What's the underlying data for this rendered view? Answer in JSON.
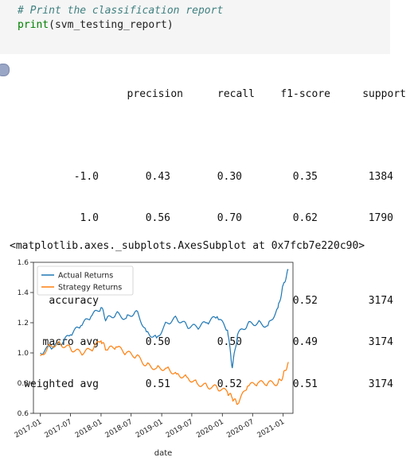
{
  "cell": {
    "comment": "# Print the classification report",
    "code_fn": "print",
    "code_arg": "(svm_testing_report)"
  },
  "report": {
    "headers": [
      "precision",
      "recall",
      "f1-score",
      "support"
    ],
    "rows": [
      {
        "label": "-1.0",
        "precision": "0.43",
        "recall": "0.30",
        "f1": "0.35",
        "support": "1384"
      },
      {
        "label": "1.0",
        "precision": "0.56",
        "recall": "0.70",
        "f1": "0.62",
        "support": "1790"
      },
      {
        "label": "accuracy",
        "precision": "",
        "recall": "",
        "f1": "0.52",
        "support": "3174"
      },
      {
        "label": "macro avg",
        "precision": "0.50",
        "recall": "0.50",
        "f1": "0.49",
        "support": "3174"
      },
      {
        "label": "weighted avg",
        "precision": "0.51",
        "recall": "0.52",
        "f1": "0.51",
        "support": "3174"
      }
    ]
  },
  "output_repr": "<matplotlib.axes._subplots.AxesSubplot at 0x7fcb7e220c90>",
  "chart_data": {
    "type": "line",
    "xlabel": "date",
    "ylabel": "",
    "ylim": [
      0.6,
      1.6
    ],
    "yticks": [
      "0.6",
      "0.8",
      "1.0",
      "1.2",
      "1.4",
      "1.6"
    ],
    "xticks": [
      "2017-01",
      "2017-07",
      "2018-01",
      "2018-07",
      "2019-01",
      "2019-07",
      "2020-01",
      "2020-07",
      "2021-01"
    ],
    "legend_position": "top-left",
    "series": [
      {
        "name": "Actual Returns",
        "color": "#1f77b4",
        "x": [
          "2017-01",
          "2017-03",
          "2017-05",
          "2017-07",
          "2017-09",
          "2017-11",
          "2018-01",
          "2018-02",
          "2018-04",
          "2018-06",
          "2018-08",
          "2018-10",
          "2018-12",
          "2019-02",
          "2019-04",
          "2019-06",
          "2019-08",
          "2019-10",
          "2019-12",
          "2020-02",
          "2020-03",
          "2020-04",
          "2020-06",
          "2020-08",
          "2020-10",
          "2020-12",
          "2021-01",
          "2021-02"
        ],
        "y": [
          1.0,
          1.04,
          1.06,
          1.12,
          1.18,
          1.24,
          1.3,
          1.22,
          1.26,
          1.23,
          1.28,
          1.14,
          1.1,
          1.2,
          1.23,
          1.18,
          1.17,
          1.2,
          1.24,
          1.15,
          0.9,
          1.12,
          1.19,
          1.2,
          1.18,
          1.3,
          1.45,
          1.55
        ]
      },
      {
        "name": "Strategy Returns",
        "color": "#ff7f0e",
        "x": [
          "2017-01",
          "2017-03",
          "2017-05",
          "2017-07",
          "2017-09",
          "2017-11",
          "2018-01",
          "2018-02",
          "2018-04",
          "2018-06",
          "2018-08",
          "2018-10",
          "2018-12",
          "2019-02",
          "2019-04",
          "2019-06",
          "2019-08",
          "2019-10",
          "2019-12",
          "2020-02",
          "2020-03",
          "2020-04",
          "2020-06",
          "2020-08",
          "2020-10",
          "2020-12",
          "2021-01",
          "2021-02"
        ],
        "y": [
          0.98,
          1.05,
          1.06,
          1.03,
          1.0,
          1.02,
          1.08,
          1.02,
          1.04,
          1.0,
          0.98,
          0.92,
          0.9,
          0.9,
          0.86,
          0.84,
          0.8,
          0.78,
          0.77,
          0.74,
          0.7,
          0.66,
          0.78,
          0.8,
          0.8,
          0.8,
          0.85,
          0.94
        ]
      }
    ]
  }
}
